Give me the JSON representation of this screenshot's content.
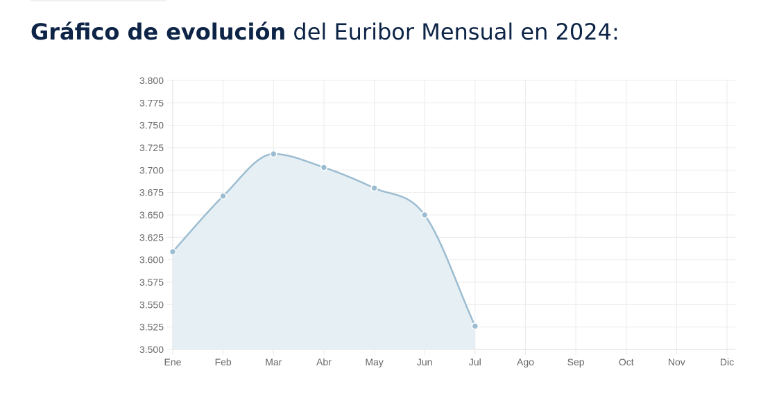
{
  "heading": {
    "bold": "Gráfico de evolución",
    "rest": " del Euribor Mensual en 2024:"
  },
  "chart_data": {
    "type": "area",
    "categories": [
      "Ene",
      "Feb",
      "Mar",
      "Abr",
      "May",
      "Jun",
      "Jul",
      "Ago",
      "Sep",
      "Oct",
      "Nov",
      "Dic"
    ],
    "series": [
      {
        "values": [
          3.609,
          3.671,
          3.718,
          3.703,
          3.68,
          3.65,
          3.526,
          null,
          null,
          null,
          null,
          null
        ],
        "color": "#9cbdd1",
        "fill": "#e6f0f4"
      }
    ],
    "ylim": [
      3.5,
      3.8
    ],
    "yticks": [
      "3.800",
      "3.775",
      "3.750",
      "3.725",
      "3.700",
      "3.675",
      "3.650",
      "3.625",
      "3.600",
      "3.575",
      "3.550",
      "3.525",
      "3.500"
    ],
    "grid": true,
    "legend": "none"
  }
}
